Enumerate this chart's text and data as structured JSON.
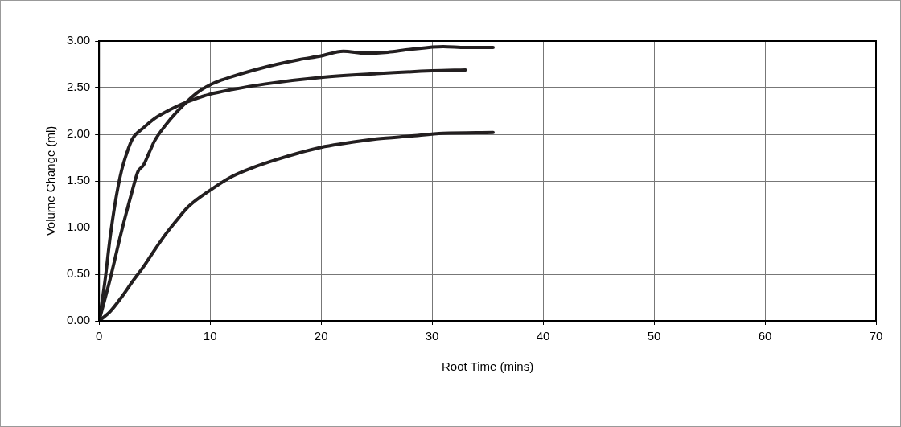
{
  "chart_data": {
    "type": "line",
    "xlabel": "Root Time (mins)",
    "ylabel": "Volume Change (ml)",
    "xlim": [
      0,
      70
    ],
    "xticks": [
      0,
      10,
      20,
      30,
      40,
      50,
      60,
      70
    ],
    "ylim": [
      0,
      3
    ],
    "yticks": [
      {
        "value": 0,
        "label": "0.00"
      },
      {
        "value": 0.5,
        "label": "0.50"
      },
      {
        "value": 1,
        "label": "1.00"
      },
      {
        "value": 1.5,
        "label": "1.50"
      },
      {
        "value": 2,
        "label": "2.00"
      },
      {
        "value": 2.5,
        "label": "2.50"
      },
      {
        "value": 3,
        "label": "3.00"
      }
    ],
    "grid": true,
    "legend": false,
    "marker": "none",
    "line_style": "solid",
    "series": [
      {
        "color": "#231f20",
        "x": [
          0,
          0.5,
          1,
          1.5,
          2,
          2.5,
          3,
          4,
          5,
          6,
          7,
          8,
          10,
          12,
          15,
          20,
          25,
          30,
          33
        ],
        "values": [
          0,
          0.4,
          0.9,
          1.3,
          1.6,
          1.8,
          1.95,
          2.07,
          2.17,
          2.24,
          2.3,
          2.35,
          2.43,
          2.48,
          2.54,
          2.61,
          2.65,
          2.68,
          2.69
        ]
      },
      {
        "color": "#231f20",
        "x": [
          0,
          1,
          2,
          3,
          3.5,
          4,
          4.5,
          5,
          6,
          7,
          8,
          9,
          10,
          11,
          12,
          14,
          16,
          18,
          20,
          22,
          24,
          26,
          28,
          31,
          33,
          35.5
        ],
        "values": [
          0,
          0.45,
          0.95,
          1.4,
          1.6,
          1.67,
          1.8,
          1.93,
          2.1,
          2.24,
          2.36,
          2.46,
          2.53,
          2.58,
          2.62,
          2.69,
          2.75,
          2.8,
          2.84,
          2.89,
          2.87,
          2.88,
          2.91,
          2.94,
          2.93,
          2.93
        ]
      },
      {
        "color": "#231f20",
        "x": [
          0,
          1,
          2,
          3,
          4,
          5,
          6,
          7,
          8,
          10,
          12,
          14,
          16,
          18,
          20,
          22,
          25,
          28,
          31,
          35.5
        ],
        "values": [
          0,
          0.1,
          0.25,
          0.42,
          0.58,
          0.76,
          0.93,
          1.08,
          1.22,
          1.4,
          1.55,
          1.65,
          1.73,
          1.8,
          1.86,
          1.9,
          1.95,
          1.98,
          2.01,
          2.02
        ]
      }
    ]
  }
}
